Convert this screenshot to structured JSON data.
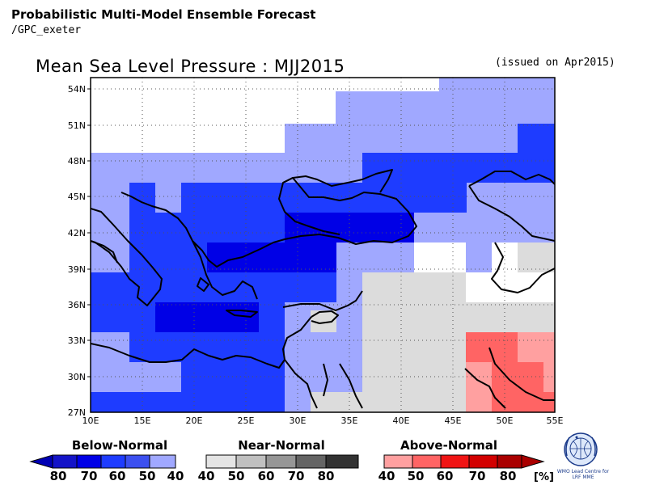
{
  "header": {
    "title": "Probabilistic Multi-Model Ensemble Forecast",
    "subtitle": "/GPC_exeter"
  },
  "map": {
    "title": "Mean Sea Level Pressure : MJJ2015",
    "issued": "(issued on Apr2015)",
    "lat_labels": [
      "54N",
      "51N",
      "48N",
      "45N",
      "42N",
      "39N",
      "36N",
      "33N",
      "30N",
      "27N"
    ],
    "lon_labels": [
      "10E",
      "15E",
      "20E",
      "25E",
      "30E",
      "35E",
      "40E",
      "45E",
      "50E",
      "55E"
    ]
  },
  "legend": {
    "below": {
      "label": "Below-Normal",
      "ticks": [
        "80",
        "70",
        "60",
        "50",
        "40"
      ]
    },
    "near": {
      "label": "Near-Normal",
      "ticks": [
        "40",
        "50",
        "60",
        "70",
        "80"
      ]
    },
    "above": {
      "label": "Above-Normal",
      "ticks": [
        "40",
        "50",
        "60",
        "70",
        "80"
      ],
      "unit": "[%]"
    },
    "colors": {
      "below": [
        "#1414c8",
        "#0000e6",
        "#1e3cff",
        "#3c50f0",
        "#a0a8ff"
      ],
      "near": [
        "#e4e4e4",
        "#c0c0c0",
        "#969696",
        "#646464",
        "#323232"
      ],
      "above": [
        "#ffa0a0",
        "#ff6464",
        "#f01414",
        "#d20000",
        "#aa0000"
      ]
    }
  },
  "logo": {
    "text": "WMO Lead Centre for LRF MME"
  }
}
